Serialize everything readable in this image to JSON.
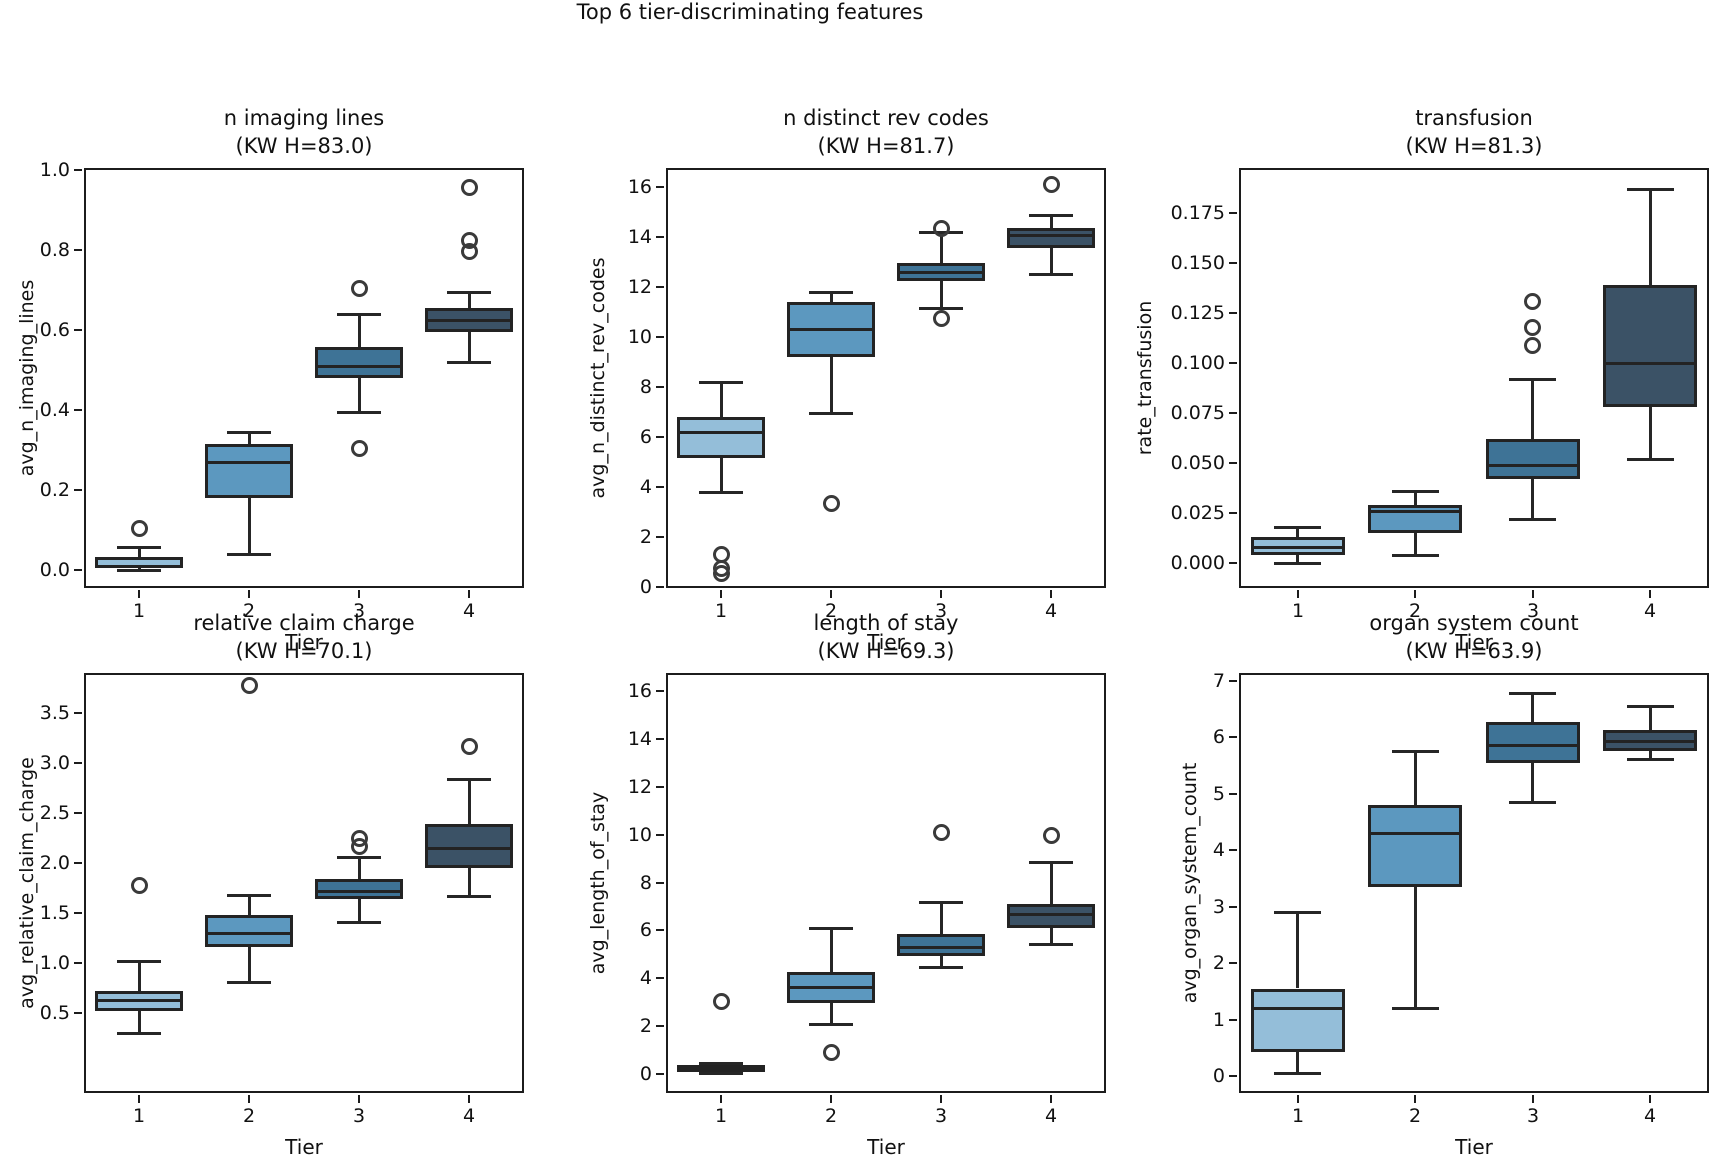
{
  "figure": {
    "suptitle": "Top 6 tier-discriminating features"
  },
  "palette": {
    "tier_colors": [
      "#94bed9",
      "#5c98bf",
      "#3e7396",
      "#3b5266"
    ],
    "box_edge": "#232323",
    "whisker": "#262626",
    "outlier_edge": "#3a3a3a",
    "text": "#111111"
  },
  "tier_axis": {
    "label": "Tier",
    "categories": [
      "1",
      "2",
      "3",
      "4"
    ]
  },
  "chart_data": [
    {
      "type": "box",
      "title": "n imaging lines",
      "subtitle": "(KW H=83.0)",
      "kw_h": 83.0,
      "ylabel": "avg_n_imaging_lines",
      "yticks": [
        0.0,
        0.2,
        0.4,
        0.6,
        0.8,
        1.0
      ],
      "ytick_decimals": 1,
      "ylim": [
        -0.045,
        1.005
      ],
      "boxes": [
        {
          "tier": "1",
          "whislo": 0.0,
          "q1": 0.004,
          "med": 0.01,
          "q3": 0.032,
          "whishi": 0.056,
          "outliers": [
            0.105
          ]
        },
        {
          "tier": "2",
          "whislo": 0.04,
          "q1": 0.18,
          "med": 0.27,
          "q3": 0.315,
          "whishi": 0.345,
          "outliers": []
        },
        {
          "tier": "3",
          "whislo": 0.395,
          "q1": 0.48,
          "med": 0.51,
          "q3": 0.558,
          "whishi": 0.64,
          "outliers": [
            0.705,
            0.305
          ]
        },
        {
          "tier": "4",
          "whislo": 0.52,
          "q1": 0.595,
          "med": 0.625,
          "q3": 0.655,
          "whishi": 0.695,
          "outliers": [
            0.955,
            0.825,
            0.795
          ]
        }
      ]
    },
    {
      "type": "box",
      "title": "n distinct rev codes",
      "subtitle": "(KW H=81.7)",
      "kw_h": 81.7,
      "ylabel": "avg_n_distinct_rev_codes",
      "yticks": [
        0,
        2,
        4,
        6,
        8,
        10,
        12,
        14,
        16
      ],
      "ytick_decimals": 0,
      "ylim": [
        -0.04,
        16.76
      ],
      "boxes": [
        {
          "tier": "1",
          "whislo": 3.8,
          "q1": 5.15,
          "med": 6.2,
          "q3": 6.8,
          "whishi": 8.2,
          "outliers": [
            1.3,
            0.75,
            0.55
          ]
        },
        {
          "tier": "2",
          "whislo": 6.95,
          "q1": 9.2,
          "med": 10.3,
          "q3": 11.4,
          "whishi": 11.8,
          "outliers": [
            3.35
          ]
        },
        {
          "tier": "3",
          "whislo": 11.15,
          "q1": 12.25,
          "med": 12.6,
          "q3": 12.95,
          "whishi": 14.2,
          "outliers": [
            14.35,
            10.75
          ]
        },
        {
          "tier": "4",
          "whislo": 12.5,
          "q1": 13.55,
          "med": 14.05,
          "q3": 14.35,
          "whishi": 14.85,
          "outliers": [
            16.1
          ]
        }
      ]
    },
    {
      "type": "box",
      "title": "transfusion",
      "subtitle": "(KW H=81.3)",
      "kw_h": 81.3,
      "ylabel": "rate_transfusion",
      "yticks": [
        0.0,
        0.025,
        0.05,
        0.075,
        0.1,
        0.125,
        0.15,
        0.175
      ],
      "ytick_decimals": 3,
      "ylim": [
        -0.0125,
        0.1975
      ],
      "boxes": [
        {
          "tier": "1",
          "whislo": 0.0,
          "q1": 0.004,
          "med": 0.008,
          "q3": 0.013,
          "whishi": 0.018,
          "outliers": []
        },
        {
          "tier": "2",
          "whislo": 0.004,
          "q1": 0.015,
          "med": 0.026,
          "q3": 0.029,
          "whishi": 0.036,
          "outliers": []
        },
        {
          "tier": "3",
          "whislo": 0.022,
          "q1": 0.042,
          "med": 0.049,
          "q3": 0.062,
          "whishi": 0.092,
          "outliers": [
            0.131,
            0.118,
            0.109
          ]
        },
        {
          "tier": "4",
          "whislo": 0.052,
          "q1": 0.078,
          "med": 0.1,
          "q3": 0.139,
          "whishi": 0.187,
          "outliers": []
        }
      ]
    },
    {
      "type": "box",
      "title": "relative claim charge",
      "subtitle": "(KW H=70.1)",
      "kw_h": 70.1,
      "ylabel": "avg_relative_claim_charge",
      "yticks": [
        0.5,
        1.0,
        1.5,
        2.0,
        2.5,
        3.0,
        3.5
      ],
      "ytick_decimals": 1,
      "ylim": [
        -0.3,
        3.9
      ],
      "boxes": [
        {
          "tier": "1",
          "whislo": 0.3,
          "q1": 0.52,
          "med": 0.63,
          "q3": 0.72,
          "whishi": 1.02,
          "outliers": [
            1.78
          ]
        },
        {
          "tier": "2",
          "whislo": 0.81,
          "q1": 1.16,
          "med": 1.3,
          "q3": 1.48,
          "whishi": 1.68,
          "outliers": [
            3.78
          ]
        },
        {
          "tier": "3",
          "whislo": 1.41,
          "q1": 1.64,
          "med": 1.72,
          "q3": 1.84,
          "whishi": 2.06,
          "outliers": [
            2.25,
            2.17
          ]
        },
        {
          "tier": "4",
          "whislo": 1.67,
          "q1": 1.95,
          "med": 2.15,
          "q3": 2.39,
          "whishi": 2.84,
          "outliers": [
            3.17
          ]
        }
      ]
    },
    {
      "type": "box",
      "title": "length of stay",
      "subtitle": "(KW H=69.3)",
      "kw_h": 69.3,
      "ylabel": "avg_length_of_stay",
      "yticks": [
        0,
        2,
        4,
        6,
        8,
        10,
        12,
        14,
        16
      ],
      "ytick_decimals": 0,
      "ylim": [
        -0.78,
        16.74
      ],
      "boxes": [
        {
          "tier": "1",
          "whislo": 0.02,
          "q1": 0.08,
          "med": 0.22,
          "q3": 0.38,
          "whishi": 0.47,
          "outliers": [
            3.05
          ]
        },
        {
          "tier": "2",
          "whislo": 2.09,
          "q1": 2.96,
          "med": 3.63,
          "q3": 4.27,
          "whishi": 6.1,
          "outliers": [
            0.9
          ]
        },
        {
          "tier": "3",
          "whislo": 4.45,
          "q1": 4.95,
          "med": 5.3,
          "q3": 5.85,
          "whishi": 7.15,
          "outliers": [
            10.1
          ]
        },
        {
          "tier": "4",
          "whislo": 5.4,
          "q1": 6.1,
          "med": 6.65,
          "q3": 7.1,
          "whishi": 8.85,
          "outliers": [
            9.95
          ]
        }
      ]
    },
    {
      "type": "box",
      "title": "organ system count",
      "subtitle": "(KW H=63.9)",
      "kw_h": 63.9,
      "ylabel": "avg_organ_system_count",
      "yticks": [
        0,
        1,
        2,
        3,
        4,
        5,
        6,
        7
      ],
      "ytick_decimals": 0,
      "ylim": [
        -0.3,
        7.14
      ],
      "boxes": [
        {
          "tier": "1",
          "whislo": 0.04,
          "q1": 0.44,
          "med": 1.2,
          "q3": 1.55,
          "whishi": 2.9,
          "outliers": []
        },
        {
          "tier": "2",
          "whislo": 1.2,
          "q1": 3.35,
          "med": 4.3,
          "q3": 4.8,
          "whishi": 5.75,
          "outliers": []
        },
        {
          "tier": "3",
          "whislo": 4.85,
          "q1": 5.55,
          "med": 5.85,
          "q3": 6.27,
          "whishi": 6.77,
          "outliers": []
        },
        {
          "tier": "4",
          "whislo": 5.6,
          "q1": 5.75,
          "med": 5.93,
          "q3": 6.13,
          "whishi": 6.55,
          "outliers": []
        }
      ]
    }
  ]
}
